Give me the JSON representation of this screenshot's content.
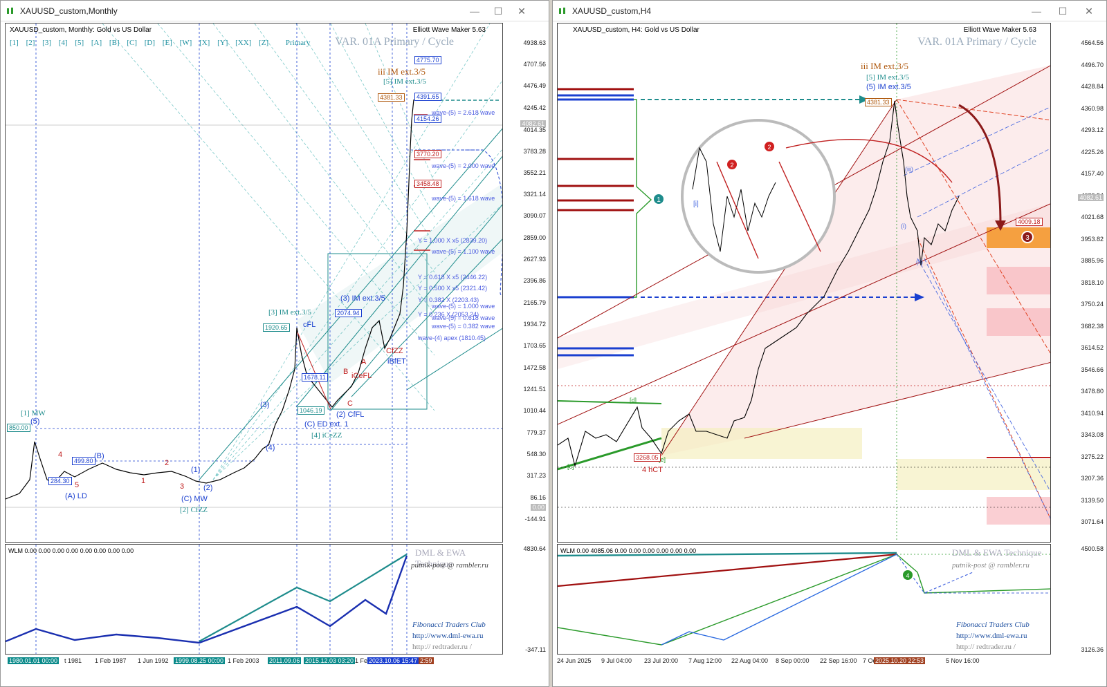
{
  "left": {
    "window_title": "XAUUSD_custom,Monthly",
    "header": "XAUUSD_custom, Monthly:  Gold vs US Dollar",
    "ewm": "Elliott Wave Maker 5.63",
    "var_label": "VAR. 01A Primary  /  Cycle",
    "wave_tabs": [
      "[1]",
      "[2]",
      "[3]",
      "[4]",
      "[5]",
      "[A]",
      "[B]",
      "[C]",
      "[D]",
      "[E]",
      "[W]",
      "[X]",
      "[Y]",
      "[XX]",
      "[Z]",
      "Primary"
    ],
    "price_labels": [
      "4938.63",
      "4707.56",
      "4476.49",
      "4245.42",
      "4014.35",
      "3783.28",
      "3552.21",
      "3321.14",
      "3090.07",
      "2859.00",
      "2627.93",
      "2396.86",
      "2165.79",
      "1934.72",
      "1703.65",
      "1472.58",
      "1241.51",
      "1010.44",
      "779.37",
      "548.30",
      "317.23",
      "86.16",
      "-144.91"
    ],
    "current_price": "4082.61",
    "zero_label": "0.00",
    "sub_price_labels": [
      "4830.64",
      "-347.11"
    ],
    "sub_header": "WLM 0.00 0.00 0.00 0.00 0.00 0.00 0.00 0.00",
    "x_labels": [
      "1980.01.01 00:00",
      "t 1981",
      "1 Feb 1987",
      "1 Jun 1992",
      "1999.08.25 00:00",
      "1 Feb 2003",
      "2011.09.06",
      "2015.12.03 03:20",
      "1 Fe",
      "2023.10.06 15:47",
      "2:59"
    ],
    "box_labels": {
      "p4775": "4775.70",
      "p4391": "4391.65",
      "p4381": "4381.33",
      "p4154": "4154.26",
      "p3770": "3770.20",
      "p3458": "3458.48",
      "p2074": "2074.94",
      "p1920": "1920.65",
      "p1046": "1046.19",
      "p850": "850.00",
      "p499": "499.80",
      "p284": "284.30",
      "p1678": "1678.11"
    },
    "fib_labels": [
      "wave-(5) = 2.618 wave",
      "wave-(5) = 2.000 wave",
      "wave-(5) = 1.618 wave",
      "Y = 1.000 X x5 (2839.20)",
      "wave-(5) = 1.100 wave",
      "Y = 0.618 X x5 (2446.22)",
      "Y = 0.500 X x5 (2321.42)",
      "Y = 0.382 X (2203.43)",
      "wave-(5) = 1.000 wave",
      "Y = 0.236 X (2053.24)",
      "wave-(5) = 0.618 wave",
      "wave-(5) = 0.382 wave",
      "wave-(4) apex (1810.45)"
    ],
    "wave_labels": {
      "iii_im": "iii IM ext.3/5",
      "w5_im": "[5] IM ext.3/5",
      "w3_im": "[3] IM ext.3/5",
      "w1_mw": "[1] MW",
      "c_mw": "(C) MW",
      "w2_cfzz": "[2] CfZZ",
      "a_ld": "(A) LD",
      "b": "(B)",
      "c_ed": "(C) ED ext. 1",
      "w4_iceZZ": "[4] iCeZZ",
      "w2_cfl": "(2) CfFL",
      "w3_im_ext": "(3) IM ext.3/5",
      "cfl": "cFL",
      "icefl": "iCeFL",
      "cfzz": "CfZZ",
      "ibfet": "iBfET",
      "w1": "(1)",
      "w2": "(2)",
      "w3": "(3)",
      "w4": "(4)",
      "w5": "(5)",
      "B": "B",
      "C": "C",
      "A": "A",
      "n1": "1",
      "n2": "2",
      "n3": "3",
      "n4": "4",
      "n5": "5"
    },
    "credits": {
      "dml": "DML & EWA Technique",
      "email": "putnik-post @ rambler.ru",
      "ftc": "Fibonacci    Traders    Club",
      "url1": "http://www.dml-ewa.ru",
      "url2": "http://  redtrader.ru  /"
    }
  },
  "right": {
    "window_title": "XAUUSD_custom,H4",
    "header": "XAUUSD_custom, H4:  Gold vs US Dollar",
    "ewm": "Elliott Wave Maker 5.63",
    "var_label": "VAR. 01A Primary  /  Cycle",
    "price_labels": [
      "4564.56",
      "4496.70",
      "4428.84",
      "4360.98",
      "4293.12",
      "4225.26",
      "4157.40",
      "4089.54",
      "4021.68",
      "3953.82",
      "3885.96",
      "3818.10",
      "3750.24",
      "3682.38",
      "3614.52",
      "3546.66",
      "3478.80",
      "3410.94",
      "3343.08",
      "3275.22",
      "3207.36",
      "3139.50",
      "3071.64"
    ],
    "sub_price_labels": [
      "4500.58",
      "3126.36"
    ],
    "current_price": "4082.61",
    "sub_header": "WLM 0.00 4085.06 0.00 0.00 0.00 0.00 0.00 0.00",
    "x_labels": [
      "24 Jun 2025",
      "9 Jul 04:00",
      "23 Jul 20:00",
      "7 Aug 12:00",
      "22 Aug 04:00",
      "8 Sep 00:00",
      "22 Sep 16:00",
      "7 Oc",
      "2025.10.20 22:53",
      "5 Nov 16:00"
    ],
    "box_labels": {
      "p4381": "4381.33",
      "p4009": "4009.18",
      "p3268": "3268.05"
    },
    "wave_labels": {
      "iii_im": "iii IM ext.3/5",
      "w5_im": "[5] IM ext.3/5",
      "w5p_im": "(5) IM ext.3/5",
      "hct": "4 hCT",
      "c": "[c]",
      "d": "[d]",
      "e": "[e]",
      "i": "(i)",
      "ii": "(ii)",
      "iii": "(iii)",
      "i_zoom": "[i]"
    },
    "markers": [
      "1",
      "2",
      "2",
      "3",
      "4"
    ],
    "credits": {
      "dml": "DML & EWA Technique",
      "email": "putnik-post @ rambler.ru",
      "ftc": "Fibonacci    Traders    Club",
      "url1": "http://www.dml-ewa.ru",
      "url2": "http://  redtrader.ru  /"
    }
  },
  "colors": {
    "teal": "#1e8c8c",
    "blue": "#1a3fd0",
    "red": "#c02020",
    "darkred": "#8b1a1a",
    "green": "#2a9a2a"
  }
}
